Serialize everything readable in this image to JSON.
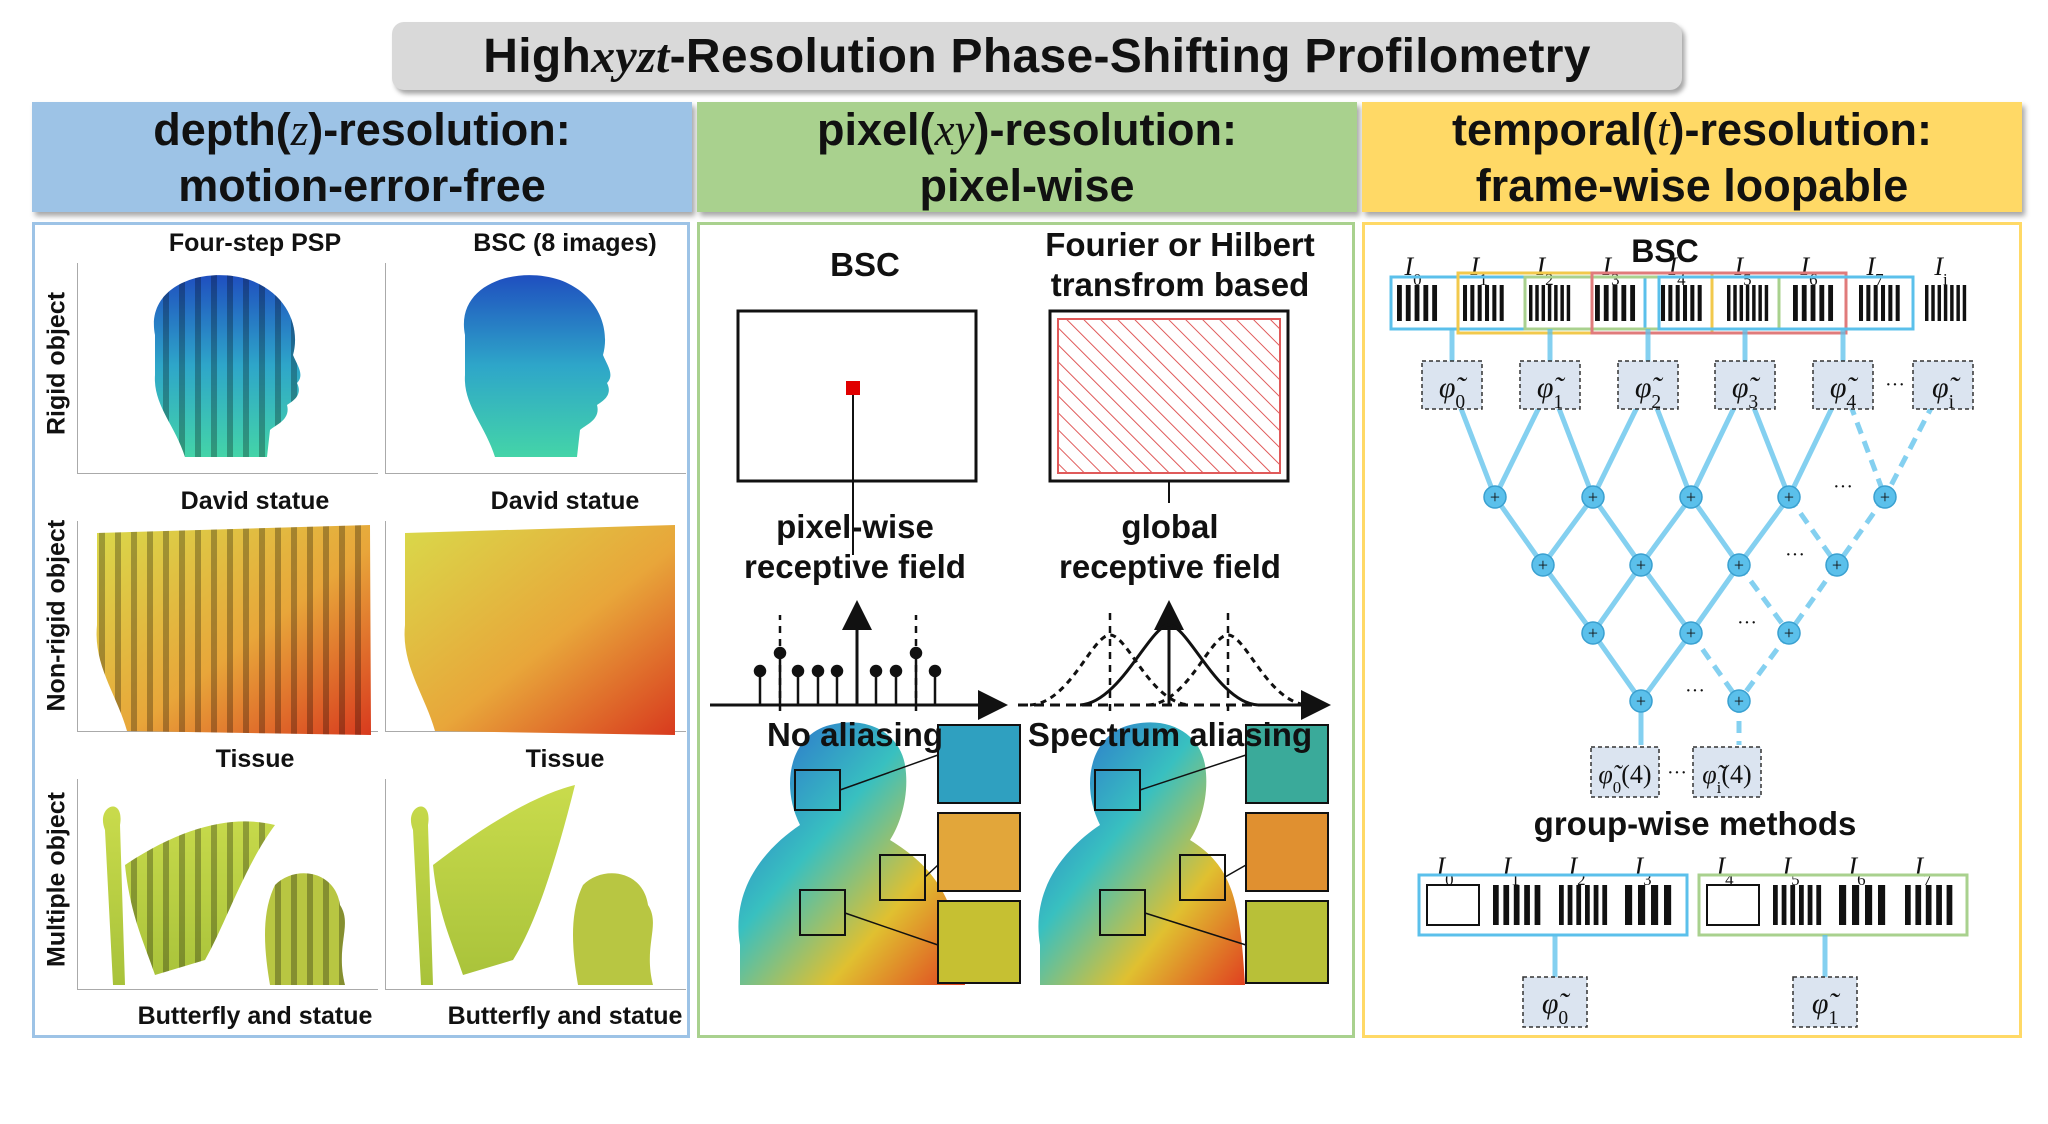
{
  "title": {
    "prefix": "High ",
    "vars": "xyzt",
    "suffix": "-Resolution Phase-Shifting Profilometry"
  },
  "columns": [
    {
      "line1_a": "depth(",
      "line1_var": "z",
      "line1_b": ")-resolution:",
      "line2": "motion-error-free",
      "color": "#9dc3e6"
    },
    {
      "line1_a": "pixel(",
      "line1_var": "xy",
      "line1_b": ")-resolution:",
      "line2": "pixel-wise",
      "color": "#a9d18e"
    },
    {
      "line1_a": "temporal(",
      "line1_var": "t",
      "line1_b": ")-resolution:",
      "line2": "frame-wise loopable",
      "color": "#ffd966"
    }
  ],
  "depth_panel": {
    "col_titles": [
      "Four-step PSP",
      "BSC (8 images)"
    ],
    "row_labels": [
      "Rigid object",
      "Non-rigid object",
      "Multiple object"
    ],
    "captions": [
      "David statue",
      "David statue",
      "Tissue",
      "Tissue",
      "Butterfly and statue",
      "Butterfly and statue"
    ]
  },
  "pixel_panel": {
    "left_title": "BSC",
    "right_title_1": "Fourier or Hilbert",
    "right_title_2": "transfrom based",
    "left_field_1": "pixel-wise",
    "left_field_2": "receptive field",
    "right_field_1": "global",
    "right_field_2": "receptive field",
    "left_spectrum": "No aliasing",
    "right_spectrum": "Spectrum aliasing"
  },
  "temporal_panel": {
    "bsc_title": "BSC",
    "frames": [
      "0",
      "1",
      "2",
      "3",
      "4",
      "5",
      "6",
      "7",
      "i"
    ],
    "phase_subs": [
      "0",
      "1",
      "2",
      "3",
      "4",
      "i"
    ],
    "output_labels": [
      "0",
      "i"
    ],
    "output_arg": "(4)",
    "ellipsis": "···",
    "group_title": "group-wise methods",
    "group_frames": [
      "0",
      "1",
      "2",
      "3",
      "4",
      "5",
      "6",
      "7"
    ],
    "group_phase_subs": [
      "0",
      "1"
    ],
    "colors": {
      "blue": "#5bc0eb",
      "yellow": "#f2c94c",
      "green": "#a9d18e",
      "red": "#e07b7b",
      "node": "#5bc0eb"
    }
  }
}
